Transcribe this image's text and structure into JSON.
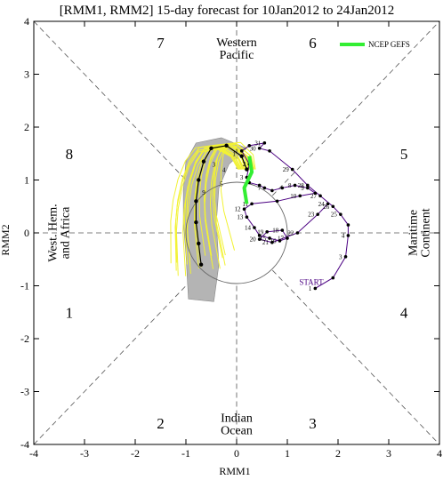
{
  "chart_data": {
    "type": "scatter",
    "title": "[RMM1, RMM2] 15-day forecast for 10Jan2012 to 24Jan2012",
    "xlabel": "RMM1",
    "ylabel": "RMM2",
    "xlim": [
      -4,
      4
    ],
    "ylim": [
      -4,
      4
    ],
    "xticks": [
      "-4",
      "-3",
      "-2",
      "-1",
      "0",
      "1",
      "2",
      "3",
      "4"
    ],
    "yticks": [
      "-4",
      "-3",
      "-2",
      "-1",
      "0",
      "1",
      "2",
      "3",
      "4"
    ],
    "grid": false,
    "legend": {
      "placement": "top-right",
      "entries": [
        {
          "name": "NCEP GEFS",
          "color": "#33ee33"
        }
      ]
    },
    "phase_numbers": [
      {
        "label": "1",
        "x": -3.3,
        "y": -1.5
      },
      {
        "label": "2",
        "x": -1.5,
        "y": -3.6
      },
      {
        "label": "3",
        "x": 1.5,
        "y": -3.6
      },
      {
        "label": "4",
        "x": 3.3,
        "y": -1.5
      },
      {
        "label": "5",
        "x": 3.3,
        "y": 1.5
      },
      {
        "label": "6",
        "x": 1.5,
        "y": 3.6
      },
      {
        "label": "7",
        "x": -1.5,
        "y": 3.6
      },
      {
        "label": "8",
        "x": -3.3,
        "y": 1.5
      }
    ],
    "regions": {
      "top": [
        "Western",
        "Pacific"
      ],
      "bottom": [
        "Indian",
        "Ocean"
      ],
      "left": [
        "West. Hem.",
        "and Africa"
      ],
      "right": [
        "Maritime",
        "Continent"
      ]
    },
    "unit_circle_radius": 1,
    "start_label": "START",
    "observed": {
      "color": "#4b0082",
      "points": [
        {
          "x": 1.55,
          "y": -1.05,
          "label": "1"
        },
        {
          "x": 1.9,
          "y": -0.85
        },
        {
          "x": 2.15,
          "y": -0.45,
          "label": "3"
        },
        {
          "x": 2.2,
          "y": -0.05,
          "label": "4"
        },
        {
          "x": 2.2,
          "y": 0.15
        },
        {
          "x": 2.05,
          "y": 0.35,
          "label": "25"
        },
        {
          "x": 1.9,
          "y": 0.5,
          "label": "26"
        },
        {
          "x": 1.65,
          "y": 0.7,
          "label": "27"
        },
        {
          "x": 1.4,
          "y": 0.9,
          "label": "28"
        },
        {
          "x": 1.1,
          "y": 1.2,
          "label": "29"
        },
        {
          "x": 0.65,
          "y": 1.55
        },
        {
          "x": 0.45,
          "y": 1.6,
          "label": "30"
        },
        {
          "x": 0.55,
          "y": 1.7,
          "label": "31"
        },
        {
          "x": 0.25,
          "y": 1.65
        },
        {
          "x": 0.1,
          "y": 1.55,
          "label": "1"
        },
        {
          "x": 0.25,
          "y": 1.3,
          "label": "2"
        },
        {
          "x": 0.2,
          "y": 1.05,
          "label": "3"
        },
        {
          "x": 0.25,
          "y": 0.95
        },
        {
          "x": 0.45,
          "y": 0.9
        },
        {
          "x": 0.55,
          "y": 0.85,
          "label": "7"
        },
        {
          "x": 0.7,
          "y": 0.8
        },
        {
          "x": 0.9,
          "y": 0.85
        },
        {
          "x": 1.15,
          "y": 0.9,
          "label": "8"
        },
        {
          "x": 1.4,
          "y": 0.85,
          "label": "9"
        },
        {
          "x": 1.55,
          "y": 0.75
        },
        {
          "x": 1.25,
          "y": 0.7,
          "label": "10"
        },
        {
          "x": 0.8,
          "y": 0.6
        },
        {
          "x": 0.3,
          "y": 0.55,
          "label": "11"
        },
        {
          "x": 0.15,
          "y": 0.45,
          "label": "12"
        },
        {
          "x": 0.2,
          "y": 0.3,
          "label": "13"
        },
        {
          "x": 0.35,
          "y": 0.1,
          "label": "14"
        },
        {
          "x": 0.45,
          "y": -0.05
        },
        {
          "x": 0.65,
          "y": -0.1,
          "label": "15"
        },
        {
          "x": 0.85,
          "y": -0.15,
          "label": "16"
        },
        {
          "x": 1.0,
          "y": -0.1,
          "label": "17"
        },
        {
          "x": 0.9,
          "y": 0.05,
          "label": "18"
        },
        {
          "x": 0.6,
          "y": 0.02,
          "label": "19"
        },
        {
          "x": 0.45,
          "y": -0.12,
          "label": "20"
        },
        {
          "x": 0.7,
          "y": -0.18,
          "label": "21"
        },
        {
          "x": 1.2,
          "y": 0.0,
          "label": "22"
        },
        {
          "x": 1.6,
          "y": 0.35,
          "label": "23"
        },
        {
          "x": 1.8,
          "y": 0.55,
          "label": "24"
        }
      ]
    },
    "ensemble_mean": {
      "color": "#000000",
      "points": [
        {
          "x": 0.2,
          "y": 1.2
        },
        {
          "x": 0.1,
          "y": 1.45
        },
        {
          "x": -0.2,
          "y": 1.65
        },
        {
          "x": -0.5,
          "y": 1.6
        },
        {
          "x": -0.65,
          "y": 1.35
        },
        {
          "x": -0.75,
          "y": 1.0
        },
        {
          "x": -0.8,
          "y": 0.6
        },
        {
          "x": -0.8,
          "y": 0.2
        },
        {
          "x": -0.75,
          "y": -0.2
        },
        {
          "x": -0.7,
          "y": -0.6
        }
      ],
      "day_labels": [
        {
          "x": -0.05,
          "y": 1.45,
          "label": "1"
        },
        {
          "x": -0.45,
          "y": 1.25,
          "label": "3"
        },
        {
          "x": -0.25,
          "y": 1.15,
          "label": "4"
        },
        {
          "x": -0.3,
          "y": 0.88,
          "label": "5"
        },
        {
          "x": -0.65,
          "y": 0.72,
          "label": "9"
        }
      ]
    },
    "ncep_gefs": {
      "color": "#33ee33",
      "points": [
        {
          "x": 0.2,
          "y": 0.55
        },
        {
          "x": 0.15,
          "y": 0.85
        },
        {
          "x": 0.3,
          "y": 1.15
        },
        {
          "x": 0.25,
          "y": 1.45
        }
      ]
    },
    "spread_band": {
      "color": "#b4b4b4",
      "left_edge": [
        {
          "x": -0.3,
          "y": 1.8
        },
        {
          "x": -0.8,
          "y": 1.7
        },
        {
          "x": -1.0,
          "y": 1.35
        },
        {
          "x": -1.05,
          "y": 0.8
        },
        {
          "x": -1.05,
          "y": 0.2
        },
        {
          "x": -1.0,
          "y": -0.4
        },
        {
          "x": -0.95,
          "y": -1.25
        }
      ],
      "right_edge": [
        {
          "x": -0.45,
          "y": -1.3
        },
        {
          "x": -0.35,
          "y": -0.6
        },
        {
          "x": -0.4,
          "y": 0.2
        },
        {
          "x": -0.35,
          "y": 0.85
        },
        {
          "x": -0.15,
          "y": 1.3
        },
        {
          "x": 0.2,
          "y": 1.6
        }
      ]
    },
    "members": {
      "color": "#f2f233",
      "count": 20
    }
  }
}
